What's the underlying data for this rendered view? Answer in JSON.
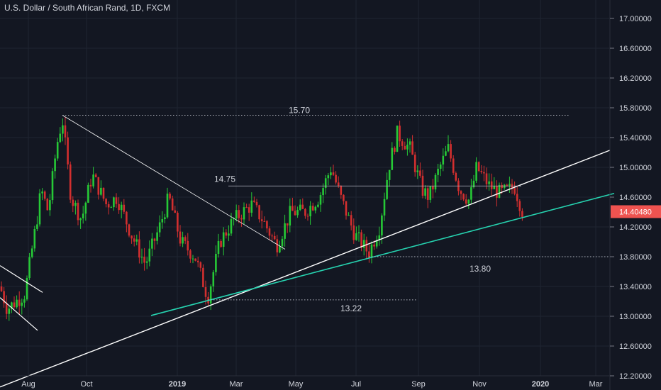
{
  "header": {
    "title": "U.S. Dollar / South African Rand, 1D, FXCM"
  },
  "colors": {
    "background": "#131722",
    "grid": "#1f2431",
    "text": "#d1d4dc",
    "up": "#26c936",
    "down": "#d32f2f",
    "trendline": "#ffffff",
    "support_trend": "#26d3b0",
    "price_badge": "#ef5350"
  },
  "chart_data": {
    "type": "candlestick",
    "title": "U.S. Dollar / South African Rand, 1D, FXCM",
    "xlabel": "",
    "ylabel": "",
    "ylim": [
      12.0,
      17.0
    ],
    "x_ticks": [
      "Aug",
      "Oct",
      "2019",
      "Mar",
      "May",
      "Jul",
      "Sep",
      "Nov",
      "2020",
      "Mar"
    ],
    "y_ticks": [
      "12.20000",
      "12.60000",
      "13.00000",
      "13.40000",
      "13.80000",
      "14.20000",
      "14.60000",
      "15.00000",
      "15.40000",
      "15.80000",
      "16.20000",
      "16.60000",
      "17.00000"
    ],
    "last_price": "14.40480",
    "level_labels": [
      "15.70",
      "14.75",
      "13.80",
      "13.22"
    ],
    "price_path": [
      {
        "x": 0,
        "y": 13.4
      },
      {
        "x": 10,
        "y": 13.1
      },
      {
        "x": 35,
        "y": 13.3
      },
      {
        "x": 52,
        "y": 14.3
      },
      {
        "x": 58,
        "y": 14.7
      },
      {
        "x": 68,
        "y": 14.4
      },
      {
        "x": 80,
        "y": 15.3
      },
      {
        "x": 88,
        "y": 15.65
      },
      {
        "x": 100,
        "y": 14.6
      },
      {
        "x": 115,
        "y": 14.3
      },
      {
        "x": 130,
        "y": 14.9
      },
      {
        "x": 150,
        "y": 14.5
      },
      {
        "x": 165,
        "y": 14.6
      },
      {
        "x": 185,
        "y": 14.1
      },
      {
        "x": 205,
        "y": 13.7
      },
      {
        "x": 225,
        "y": 14.2
      },
      {
        "x": 238,
        "y": 14.6
      },
      {
        "x": 255,
        "y": 14.0
      },
      {
        "x": 275,
        "y": 13.8
      },
      {
        "x": 293,
        "y": 13.25
      },
      {
        "x": 310,
        "y": 14.0
      },
      {
        "x": 330,
        "y": 14.3
      },
      {
        "x": 355,
        "y": 14.5
      },
      {
        "x": 370,
        "y": 14.3
      },
      {
        "x": 390,
        "y": 13.95
      },
      {
        "x": 410,
        "y": 14.4
      },
      {
        "x": 430,
        "y": 14.4
      },
      {
        "x": 450,
        "y": 14.6
      },
      {
        "x": 467,
        "y": 15.0
      },
      {
        "x": 480,
        "y": 14.6
      },
      {
        "x": 500,
        "y": 14.1
      },
      {
        "x": 520,
        "y": 13.85
      },
      {
        "x": 535,
        "y": 14.2
      },
      {
        "x": 548,
        "y": 15.0
      },
      {
        "x": 560,
        "y": 15.45
      },
      {
        "x": 578,
        "y": 15.25
      },
      {
        "x": 595,
        "y": 14.7
      },
      {
        "x": 605,
        "y": 14.6
      },
      {
        "x": 620,
        "y": 15.0
      },
      {
        "x": 632,
        "y": 15.25
      },
      {
        "x": 648,
        "y": 14.7
      },
      {
        "x": 662,
        "y": 14.55
      },
      {
        "x": 672,
        "y": 15.0
      },
      {
        "x": 690,
        "y": 14.75
      },
      {
        "x": 705,
        "y": 14.65
      },
      {
        "x": 718,
        "y": 14.7
      },
      {
        "x": 725,
        "y": 14.75
      },
      {
        "x": 737,
        "y": 14.4
      }
    ]
  }
}
